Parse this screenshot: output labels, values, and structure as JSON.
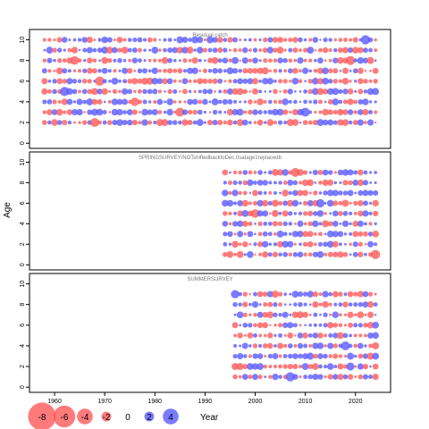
{
  "chart_data": {
    "type": "scatter",
    "subtype": "residual-bubble",
    "ylabel": "Age",
    "xlabel": "Year",
    "xticks": [
      1960,
      1970,
      1980,
      1990,
      2000,
      2010,
      2020
    ],
    "yticks": [
      0,
      2,
      4,
      6,
      8,
      10
    ],
    "xlim": [
      1955,
      2027
    ],
    "ylim": [
      -0.5,
      11
    ],
    "positive_color": "#5a5aff",
    "negative_color": "#ff5a5a",
    "panels": [
      {
        "title": "Residual catch",
        "year_start": 1958,
        "year_end": 2024,
        "ages": [
          2,
          3,
          4,
          5,
          6,
          7,
          8,
          9,
          10
        ],
        "seed": 11
      },
      {
        "title": "SPRINGSURVEY/NOTshiftedbacktoDec.0satage1replacedb",
        "year_start": 1994,
        "year_end": 2024,
        "ages": [
          1,
          2,
          3,
          4,
          5,
          6,
          7,
          8,
          9
        ],
        "seed": 29
      },
      {
        "title": "SUMMERSURVEY",
        "year_start": 1996,
        "year_end": 2024,
        "ages": [
          1,
          2,
          3,
          4,
          5,
          6,
          7,
          8,
          9
        ],
        "seed": 47
      }
    ],
    "legend": {
      "values": [
        -8,
        -6,
        -4,
        -2,
        0,
        2,
        4
      ],
      "labels": [
        "-8",
        "-6",
        "-4",
        "-2",
        "0",
        "2",
        "4"
      ]
    }
  }
}
